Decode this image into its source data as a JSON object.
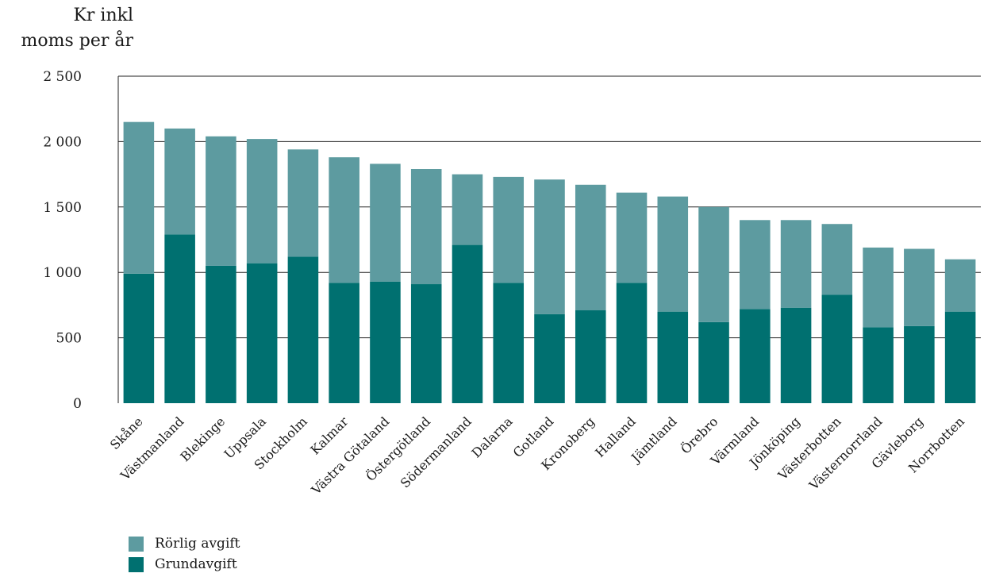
{
  "chart_data": {
    "type": "bar",
    "stacked": true,
    "ylabel_line1": "Kr inkl",
    "ylabel_line2": "moms per år",
    "ylim": [
      0,
      2500
    ],
    "yticks": [
      0,
      500,
      1000,
      1500,
      2000,
      2500
    ],
    "ytick_labels": [
      "0",
      "500",
      "1 000",
      "1 500",
      "2 000",
      "2 500"
    ],
    "grid": "horizontal",
    "legend_position": "bottom-left",
    "categories": [
      "Skåne",
      "Västmanland",
      "Blekinge",
      "Uppsala",
      "Stockholm",
      "Kalmar",
      "Västra Götaland",
      "Östergötland",
      "Södermanland",
      "Dalarna",
      "Gotland",
      "Kronoberg",
      "Halland",
      "Jämtland",
      "Örebro",
      "Värmland",
      "Jönköping",
      "Västerbotten",
      "Västernorrland",
      "Gävleborg",
      "Norrbotten"
    ],
    "series": [
      {
        "name": "Grundavgift",
        "color": "#007070",
        "values": [
          990,
          1290,
          1050,
          1070,
          1120,
          920,
          930,
          910,
          1210,
          920,
          680,
          710,
          920,
          700,
          620,
          720,
          730,
          830,
          580,
          590,
          700
        ]
      },
      {
        "name": "Rörlig avgift",
        "color": "#5d9ba0",
        "values": [
          1160,
          810,
          990,
          950,
          820,
          960,
          900,
          880,
          540,
          810,
          1030,
          960,
          690,
          880,
          880,
          680,
          670,
          540,
          610,
          590,
          400
        ]
      }
    ],
    "totals": [
      2150,
      2100,
      2040,
      2020,
      1940,
      1880,
      1830,
      1790,
      1750,
      1730,
      1710,
      1670,
      1610,
      1580,
      1500,
      1400,
      1400,
      1370,
      1190,
      1180,
      1100
    ]
  },
  "legend": {
    "items": [
      {
        "label": "Rörlig avgift",
        "color": "#5d9ba0"
      },
      {
        "label": "Grundavgift",
        "color": "#007070"
      }
    ]
  }
}
